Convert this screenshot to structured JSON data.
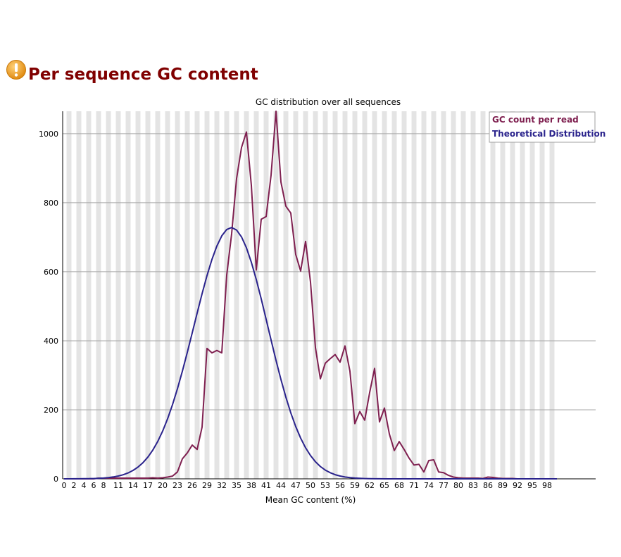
{
  "header": {
    "title": "Per sequence GC content",
    "icon": "warning-icon",
    "icon_color": "#f0a030"
  },
  "chart_data": {
    "type": "line",
    "title": "GC distribution over all sequences",
    "xlabel": "Mean GC content (%)",
    "ylabel": "",
    "xlim": [
      0,
      100
    ],
    "ylim": [
      0,
      1065
    ],
    "grid": true,
    "legend_position": "top-right",
    "x_tick_labels": [
      "0",
      "2",
      "4",
      "6",
      "8",
      "11",
      "14",
      "17",
      "20",
      "23",
      "26",
      "29",
      "32",
      "35",
      "38",
      "41",
      "44",
      "47",
      "50",
      "53",
      "56",
      "59",
      "62",
      "65",
      "68",
      "71",
      "74",
      "77",
      "80",
      "83",
      "86",
      "89",
      "92",
      "95",
      "98"
    ],
    "y_ticks": [
      0,
      200,
      400,
      600,
      800,
      1000
    ],
    "series": [
      {
        "name": "GC count per read",
        "color": "#7f2050",
        "values": [
          0,
          0,
          0,
          0,
          0,
          0,
          0,
          2,
          2,
          2,
          2,
          2,
          2,
          2,
          2,
          2,
          2,
          2,
          3,
          2,
          3,
          5,
          8,
          20,
          58,
          75,
          98,
          85,
          150,
          378,
          365,
          372,
          365,
          590,
          710,
          870,
          960,
          1005,
          850,
          605,
          752,
          760,
          880,
          1065,
          860,
          790,
          770,
          650,
          602,
          688,
          570,
          380,
          290,
          335,
          348,
          360,
          338,
          385,
          312,
          160,
          195,
          170,
          250,
          320,
          165,
          205,
          130,
          82,
          108,
          85,
          60,
          40,
          42,
          20,
          53,
          55,
          20,
          18,
          10,
          5,
          3,
          2,
          2,
          2,
          2,
          1,
          5,
          4,
          2,
          1,
          1,
          1,
          0,
          0,
          0,
          0,
          0,
          0,
          0,
          0,
          0
        ]
      },
      {
        "name": "Theoretical Distribution",
        "color": "#2a238c",
        "values": [
          0.04,
          0.07,
          0.12,
          0.2,
          0.34,
          0.56,
          0.91,
          1.46,
          2.3,
          3.56,
          5.42,
          8.1,
          11.9,
          17.2,
          24.4,
          34.1,
          46.7,
          62.9,
          83.2,
          108.2,
          138.3,
          173.8,
          214.8,
          261.0,
          311.8,
          366.2,
          423.0,
          480.3,
          536.3,
          588.8,
          635.6,
          674.6,
          704.1,
          722.4,
          728.1,
          720.9,
          701.0,
          669.3,
          627.3,
          577.3,
          521.4,
          462.2,
          402.1,
          343.4,
          287.9,
          236.8,
          191.2,
          151.5,
          117.9,
          90.0,
          67.5,
          49.6,
          35.8,
          25.4,
          17.7,
          12.1,
          8.1,
          5.3,
          3.4,
          2.2,
          1.36,
          0.83,
          0.5,
          0.29,
          0.17,
          0.09,
          0.05,
          0.03,
          0.01,
          0.01,
          0,
          0,
          0,
          0,
          0,
          0,
          0,
          0,
          0,
          0,
          0,
          0,
          0,
          0,
          0,
          0,
          0,
          0,
          0,
          0,
          0,
          0,
          0,
          0,
          0,
          0,
          0,
          0,
          0,
          0,
          0
        ]
      }
    ]
  }
}
